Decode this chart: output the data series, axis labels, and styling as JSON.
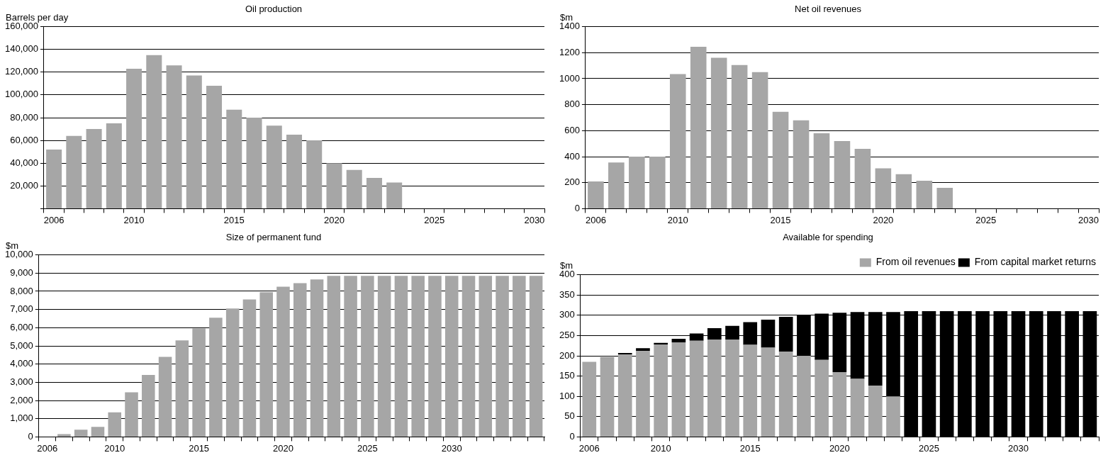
{
  "chart_data": [
    {
      "type": "bar",
      "title": "Oil production",
      "ylabel": "Barrels per day",
      "color": "#a6a6a6",
      "grid": "y",
      "categories": [
        "2006",
        null,
        null,
        null,
        "2010",
        null,
        null,
        null,
        null,
        "2015",
        null,
        null,
        null,
        null,
        "2020",
        null,
        null,
        null,
        null,
        "2025",
        null,
        null,
        null,
        null,
        "2030"
      ],
      "values": [
        52000,
        64000,
        70000,
        75000,
        123000,
        135000,
        126000,
        117000,
        108000,
        87000,
        80000,
        73000,
        65000,
        60000,
        40000,
        34000,
        27000,
        23000,
        null,
        null,
        null,
        null,
        null,
        null,
        null
      ],
      "ylim": [
        0,
        160000
      ],
      "yticks": [
        {
          "value": 0,
          "label": null
        },
        {
          "value": 20000,
          "label": "20,000"
        },
        {
          "value": 40000,
          "label": "40,000"
        },
        {
          "value": 60000,
          "label": "60,000"
        },
        {
          "value": 80000,
          "label": "80,000"
        },
        {
          "value": 100000,
          "label": "100,000"
        },
        {
          "value": 120000,
          "label": "120,000"
        },
        {
          "value": 140000,
          "label": "140,000"
        },
        {
          "value": 160000,
          "label": "160,000"
        }
      ]
    },
    {
      "type": "bar",
      "title": "Net oil revenues",
      "ylabel": "$m",
      "color": "#a6a6a6",
      "grid": "y",
      "categories": [
        "2006",
        null,
        null,
        null,
        "2010",
        null,
        null,
        null,
        null,
        "2015",
        null,
        null,
        null,
        null,
        "2020",
        null,
        null,
        null,
        null,
        "2025",
        null,
        null,
        null,
        null,
        "2030"
      ],
      "values": [
        210,
        355,
        400,
        400,
        1035,
        1245,
        1160,
        1105,
        1050,
        745,
        680,
        580,
        520,
        460,
        310,
        265,
        215,
        160,
        null,
        null,
        null,
        null,
        null,
        null,
        null
      ],
      "ylim": [
        0,
        1400
      ],
      "yticks": [
        0,
        200,
        400,
        600,
        800,
        1000,
        1200,
        1400
      ]
    },
    {
      "type": "bar",
      "title": "Size of permanent fund",
      "ylabel": "$m",
      "color": "#a6a6a6",
      "grid": "y",
      "categories": [
        "2006",
        null,
        null,
        null,
        "2010",
        null,
        null,
        null,
        null,
        "2015",
        null,
        null,
        null,
        null,
        "2020",
        null,
        null,
        null,
        null,
        "2025",
        null,
        null,
        null,
        null,
        "2030",
        null,
        null,
        null,
        null,
        null
      ],
      "values": [
        null,
        150,
        400,
        550,
        1350,
        2450,
        3400,
        4400,
        5300,
        5950,
        6550,
        7050,
        7550,
        7950,
        8250,
        8450,
        8650,
        8850,
        8850,
        8850,
        8850,
        8850,
        8850,
        8850,
        8850,
        8850,
        8850,
        8850,
        8850,
        8850
      ],
      "ylim": [
        0,
        10000
      ],
      "yticks": [
        0,
        {
          "value": 1000,
          "label": "1,000"
        },
        {
          "value": 2000,
          "label": "2,000"
        },
        {
          "value": 3000,
          "label": "3,000"
        },
        {
          "value": 4000,
          "label": "4,000"
        },
        {
          "value": 5000,
          "label": "5,000"
        },
        {
          "value": 6000,
          "label": "6,000"
        },
        {
          "value": 7000,
          "label": "7,000"
        },
        {
          "value": 8000,
          "label": "8,000"
        },
        {
          "value": 9000,
          "label": "9,000"
        },
        {
          "value": 10000,
          "label": "10,000"
        }
      ]
    },
    {
      "type": "bar",
      "title": "Available for spending",
      "ylabel": "$m",
      "grid": "y",
      "stacked": true,
      "legend": "top right",
      "categories": [
        "2006",
        null,
        null,
        null,
        "2010",
        null,
        null,
        null,
        null,
        "2015",
        null,
        null,
        null,
        null,
        "2020",
        null,
        null,
        null,
        null,
        "2025",
        null,
        null,
        null,
        null,
        "2030",
        null,
        null,
        null,
        null
      ],
      "series": [
        {
          "name": "From oil revenues",
          "color": "#a6a6a6",
          "values": [
            185,
            195,
            203,
            212,
            228,
            233,
            237,
            240,
            240,
            227,
            220,
            210,
            200,
            190,
            160,
            143,
            126,
            100,
            0,
            0,
            0,
            0,
            0,
            0,
            0,
            0,
            0,
            0,
            0
          ]
        },
        {
          "name": "From capital market returns",
          "color": "#000000",
          "values": [
            0,
            1,
            4,
            7,
            4,
            9,
            18,
            28,
            34,
            56,
            69,
            86,
            100,
            114,
            146,
            165,
            182,
            208,
            310,
            310,
            310,
            310,
            310,
            310,
            310,
            310,
            310,
            310,
            310
          ]
        }
      ],
      "ylim": [
        0,
        400
      ],
      "yticks": [
        0,
        50,
        100,
        150,
        200,
        250,
        300,
        350,
        400
      ]
    }
  ]
}
